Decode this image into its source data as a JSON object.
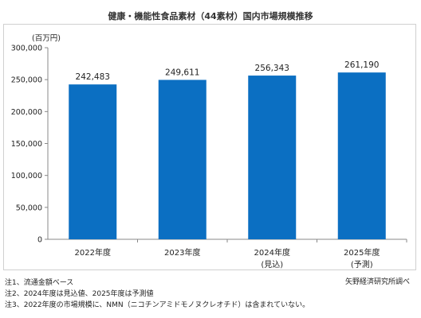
{
  "chart_data": {
    "type": "bar",
    "title": "健康・機能性食品素材（44素材）国内市場規模推移",
    "unit_label": "(百万円)",
    "categories": [
      "2022年度",
      "2023年度",
      "2024年度",
      "2025年度"
    ],
    "category_sublabels": [
      "",
      "",
      "(見込)",
      "(予測)"
    ],
    "values": [
      242483,
      249611,
      256343,
      261190
    ],
    "value_labels": [
      "242,483",
      "249,611",
      "256,343",
      "261,190"
    ],
    "ylim": [
      0,
      300000
    ],
    "yticks": [
      0,
      50000,
      100000,
      150000,
      200000,
      250000,
      300000
    ],
    "ytick_labels": [
      "0",
      "50,000",
      "100,000",
      "150,000",
      "200,000",
      "250,000",
      "300,000"
    ],
    "grid": false,
    "bar_color": "#0b6fc2"
  },
  "notes": [
    "注1、流通金額ベース",
    "注2、2024年度は見込値、2025年度は予測値",
    "注3、2022年度の市場規模に、NMN（ニコチンアミドモノヌクレオチド）は含まれていない。"
  ],
  "credit": "矢野経済研究所調べ"
}
